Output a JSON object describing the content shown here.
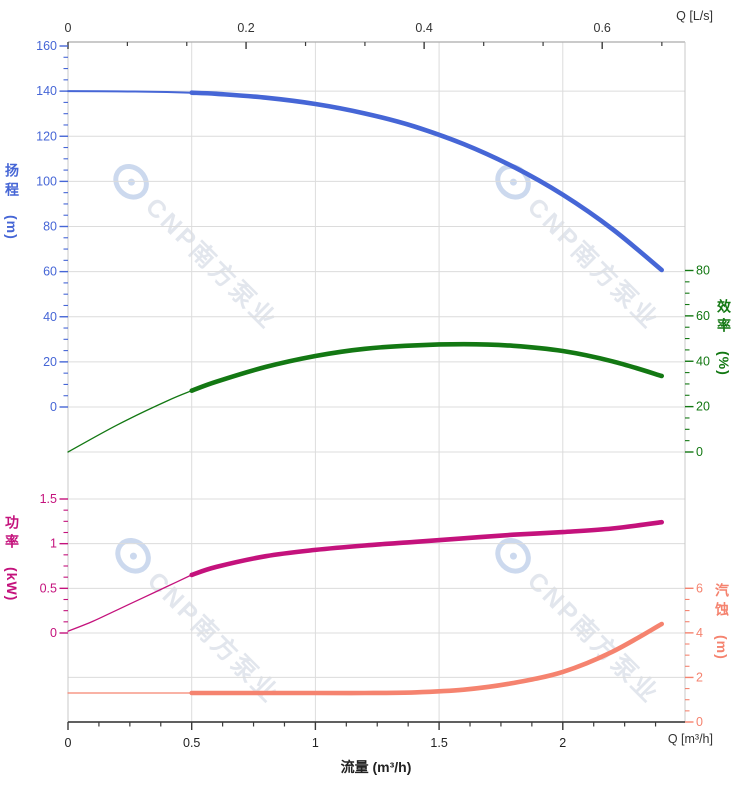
{
  "watermark": {
    "text": "CNP南方泵业",
    "logo": "cnp-eye-logo",
    "text_color": "#e2e6ed",
    "logo_color": "#ccd9ee"
  },
  "chart_data": {
    "type": "line",
    "title": "",
    "description": "Pump performance curves: head, efficiency, power and NPSH versus flow rate",
    "grid": true,
    "legend": false,
    "x_axis_bottom": {
      "label": "流量 (m³/h)",
      "unit_label": "Q [m³/h]",
      "range": [
        0,
        2.494
      ],
      "ticks": [
        0,
        0.5,
        1,
        1.5,
        2
      ],
      "minor_step": 0.125
    },
    "x_axis_top": {
      "unit_label": "Q [L/s]",
      "range": [
        0,
        0.693
      ],
      "ticks": [
        0,
        0.2,
        0.4,
        0.6
      ],
      "minor_step": 0.0667
    },
    "y_axes": [
      {
        "id": "head",
        "title": "扬程",
        "unit": "(m)",
        "side": "left",
        "panel": "upper",
        "color": "#4666D6",
        "domain": [
          0,
          160
        ],
        "ticks": [
          0,
          20,
          40,
          60,
          80,
          100,
          120,
          140,
          160
        ],
        "minor_step": 5
      },
      {
        "id": "efficiency",
        "title": "效率",
        "unit": "(%)",
        "side": "right",
        "panel": "upper",
        "color": "#137813",
        "domain": [
          0,
          80
        ],
        "ticks": [
          0,
          20,
          40,
          60,
          80
        ],
        "minor_step": 5
      },
      {
        "id": "power",
        "title": "功率",
        "unit": "(kW)",
        "side": "left",
        "panel": "lower",
        "color": "#C4127C",
        "domain": [
          0,
          1.5
        ],
        "ticks": [
          0,
          0.5,
          1,
          1.5
        ],
        "minor_step": 0.125
      },
      {
        "id": "npsh",
        "title": "汽蚀",
        "unit": "(m)",
        "side": "right",
        "panel": "lower",
        "color": "#F5836F",
        "domain": [
          0,
          6
        ],
        "ticks": [
          0,
          2,
          4,
          6
        ],
        "minor_step": 0.5
      }
    ],
    "series": [
      {
        "name": "head",
        "axis": "head",
        "color": "#4666D6",
        "thick_from_q": 0.5,
        "points": [
          [
            0,
            140
          ],
          [
            0.2,
            139.9
          ],
          [
            0.4,
            139.6
          ],
          [
            0.5,
            139.3
          ],
          [
            0.6,
            138.8
          ],
          [
            0.8,
            137.1
          ],
          [
            1,
            134.3
          ],
          [
            1.2,
            130.1
          ],
          [
            1.4,
            124.3
          ],
          [
            1.6,
            116.5
          ],
          [
            1.8,
            106.5
          ],
          [
            2,
            94.1
          ],
          [
            2.2,
            78.9
          ],
          [
            2.4,
            60.7
          ]
        ]
      },
      {
        "name": "efficiency",
        "axis": "efficiency",
        "color": "#137813",
        "thick_from_q": 0.5,
        "points": [
          [
            0,
            0
          ],
          [
            0.2,
            12
          ],
          [
            0.4,
            22.5
          ],
          [
            0.5,
            27
          ],
          [
            0.6,
            31
          ],
          [
            0.8,
            37.5
          ],
          [
            1,
            42.3
          ],
          [
            1.2,
            45.5
          ],
          [
            1.4,
            47
          ],
          [
            1.6,
            47.5
          ],
          [
            1.8,
            46.8
          ],
          [
            2,
            44.5
          ],
          [
            2.2,
            40
          ],
          [
            2.4,
            33.5
          ]
        ]
      },
      {
        "name": "power",
        "axis": "power",
        "color": "#C4127C",
        "thick_from_q": 0.5,
        "points": [
          [
            0,
            0.02
          ],
          [
            0.1,
            0.13
          ],
          [
            0.2,
            0.26
          ],
          [
            0.3,
            0.39
          ],
          [
            0.4,
            0.52
          ],
          [
            0.5,
            0.65
          ],
          [
            0.6,
            0.74
          ],
          [
            0.8,
            0.86
          ],
          [
            1,
            0.93
          ],
          [
            1.2,
            0.98
          ],
          [
            1.4,
            1.02
          ],
          [
            1.6,
            1.06
          ],
          [
            1.8,
            1.1
          ],
          [
            2,
            1.13
          ],
          [
            2.2,
            1.17
          ],
          [
            2.4,
            1.24
          ]
        ]
      },
      {
        "name": "npsh",
        "axis": "npsh",
        "color": "#F5836F",
        "thick_from_q": 0.5,
        "points": [
          [
            0,
            1.3
          ],
          [
            0.5,
            1.3
          ],
          [
            1,
            1.3
          ],
          [
            1.2,
            1.3
          ],
          [
            1.4,
            1.33
          ],
          [
            1.6,
            1.45
          ],
          [
            1.8,
            1.75
          ],
          [
            2,
            2.25
          ],
          [
            2.2,
            3.15
          ],
          [
            2.4,
            4.4
          ]
        ]
      }
    ]
  }
}
